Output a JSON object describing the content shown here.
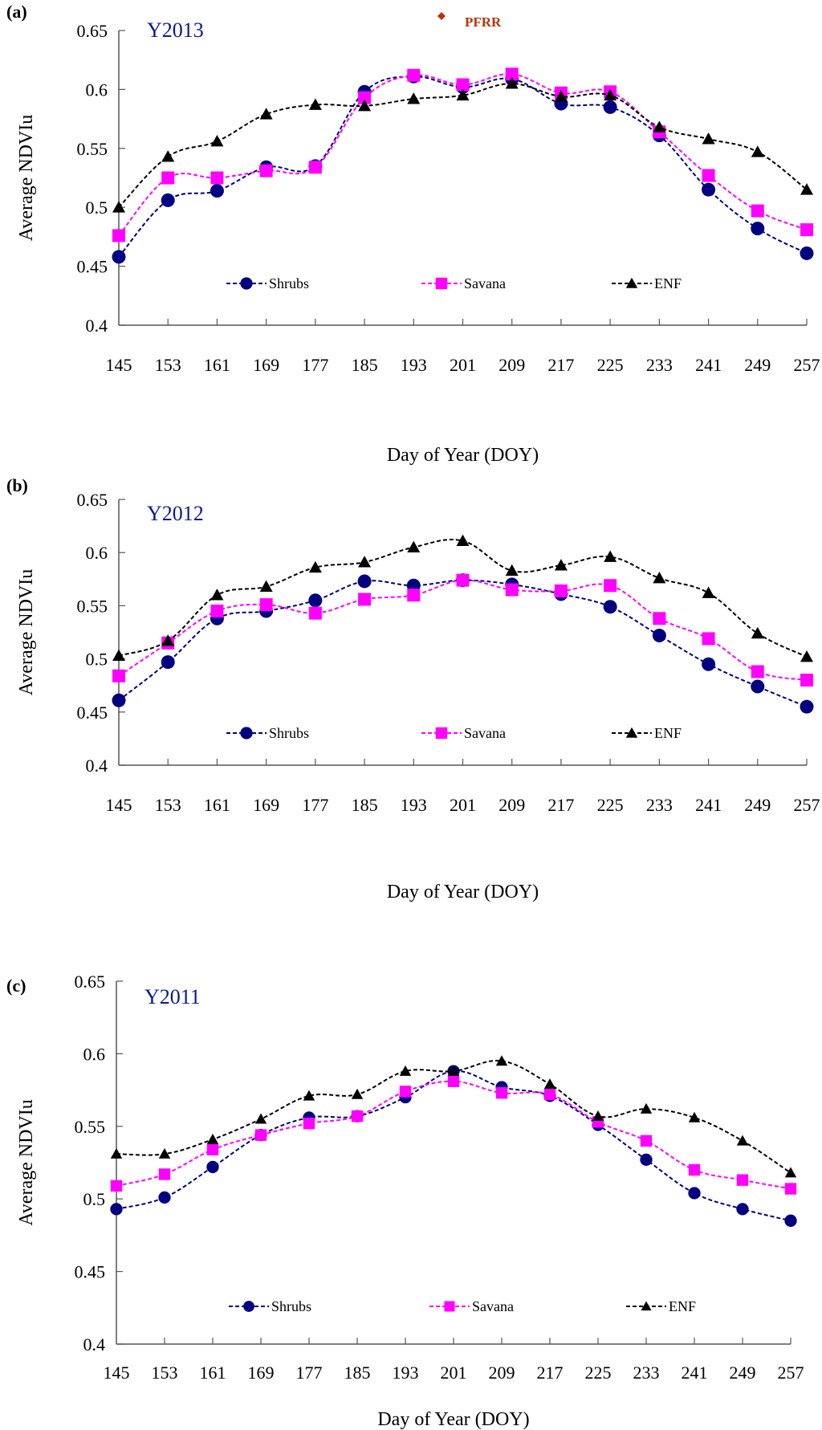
{
  "chart_data": [
    {
      "type": "line",
      "panel_label": "(a)",
      "title": "Y2013",
      "annotation": "PFRR",
      "annotation_marker": "diamond",
      "annotation_color": "#b5340e",
      "xlabel": "Day of Year (DOY)",
      "ylabel": "Average NDVIu",
      "x": [
        145,
        153,
        161,
        169,
        177,
        185,
        193,
        201,
        209,
        217,
        225,
        233,
        241,
        249,
        257
      ],
      "ylim": [
        0.4,
        0.65
      ],
      "yticks": [
        "0.4",
        "0.45",
        "0.5",
        "0.55",
        "0.6",
        "0.65"
      ],
      "grid": false,
      "legend": "bottom-center-inside",
      "series": [
        {
          "name": "Shrubs",
          "color": "#000080",
          "marker": "circle",
          "values": [
            0.458,
            0.506,
            0.514,
            0.534,
            0.535,
            0.598,
            0.611,
            0.602,
            0.609,
            0.588,
            0.585,
            0.561,
            0.515,
            0.482,
            0.461
          ]
        },
        {
          "name": "Savana",
          "color": "#ff00ff",
          "marker": "square",
          "values": [
            0.476,
            0.525,
            0.525,
            0.531,
            0.534,
            0.593,
            0.612,
            0.604,
            0.613,
            0.597,
            0.598,
            0.564,
            0.527,
            0.497,
            0.481
          ]
        },
        {
          "name": "ENF",
          "color": "#000000",
          "marker": "triangle",
          "values": [
            0.5,
            0.543,
            0.556,
            0.579,
            0.587,
            0.586,
            0.592,
            0.595,
            0.605,
            0.594,
            0.595,
            0.568,
            0.558,
            0.547,
            0.515
          ]
        }
      ]
    },
    {
      "type": "line",
      "panel_label": "(b)",
      "title": "Y2012",
      "xlabel": "Day of Year (DOY)",
      "ylabel": "Average NDVIu",
      "x": [
        145,
        153,
        161,
        169,
        177,
        185,
        193,
        201,
        209,
        217,
        225,
        233,
        241,
        249,
        257
      ],
      "ylim": [
        0.4,
        0.65
      ],
      "yticks": [
        "0.4",
        "0.45",
        "0.5",
        "0.55",
        "0.6",
        "0.65"
      ],
      "grid": false,
      "legend": "bottom-center-inside",
      "series": [
        {
          "name": "Shrubs",
          "color": "#000080",
          "marker": "circle",
          "values": [
            0.461,
            0.497,
            0.538,
            0.545,
            0.555,
            0.573,
            0.569,
            0.574,
            0.57,
            0.561,
            0.549,
            0.522,
            0.495,
            0.474,
            0.455
          ]
        },
        {
          "name": "Savana",
          "color": "#ff00ff",
          "marker": "square",
          "values": [
            0.484,
            0.515,
            0.545,
            0.551,
            0.543,
            0.556,
            0.56,
            0.574,
            0.565,
            0.564,
            0.569,
            0.538,
            0.519,
            0.488,
            0.48
          ]
        },
        {
          "name": "ENF",
          "color": "#000000",
          "marker": "triangle",
          "values": [
            0.503,
            0.517,
            0.56,
            0.568,
            0.586,
            0.591,
            0.605,
            0.611,
            0.583,
            0.588,
            0.596,
            0.576,
            0.562,
            0.524,
            0.502
          ]
        }
      ]
    },
    {
      "type": "line",
      "panel_label": "(c)",
      "title": "Y2011",
      "xlabel": "Day of Year (DOY)",
      "ylabel": "Average NDVIu",
      "x": [
        145,
        153,
        161,
        169,
        177,
        185,
        193,
        201,
        209,
        217,
        225,
        233,
        241,
        249,
        257
      ],
      "ylim": [
        0.4,
        0.65
      ],
      "yticks": [
        "0.4",
        "0.45",
        "0.5",
        "0.55",
        "0.6",
        "0.65"
      ],
      "grid": false,
      "legend": "bottom-center-inside",
      "series": [
        {
          "name": "Shrubs",
          "color": "#000080",
          "marker": "circle",
          "values": [
            0.493,
            0.501,
            0.522,
            0.544,
            0.556,
            0.557,
            0.57,
            0.588,
            0.577,
            0.571,
            0.551,
            0.527,
            0.504,
            0.493,
            0.485
          ]
        },
        {
          "name": "Savana",
          "color": "#ff00ff",
          "marker": "square",
          "values": [
            0.509,
            0.517,
            0.534,
            0.544,
            0.552,
            0.557,
            0.574,
            0.581,
            0.573,
            0.572,
            0.553,
            0.54,
            0.52,
            0.513,
            0.507
          ]
        },
        {
          "name": "ENF",
          "color": "#000000",
          "marker": "triangle",
          "values": [
            0.531,
            0.531,
            0.541,
            0.555,
            0.571,
            0.572,
            0.588,
            0.588,
            0.595,
            0.579,
            0.557,
            0.562,
            0.556,
            0.54,
            0.518
          ]
        }
      ]
    }
  ]
}
